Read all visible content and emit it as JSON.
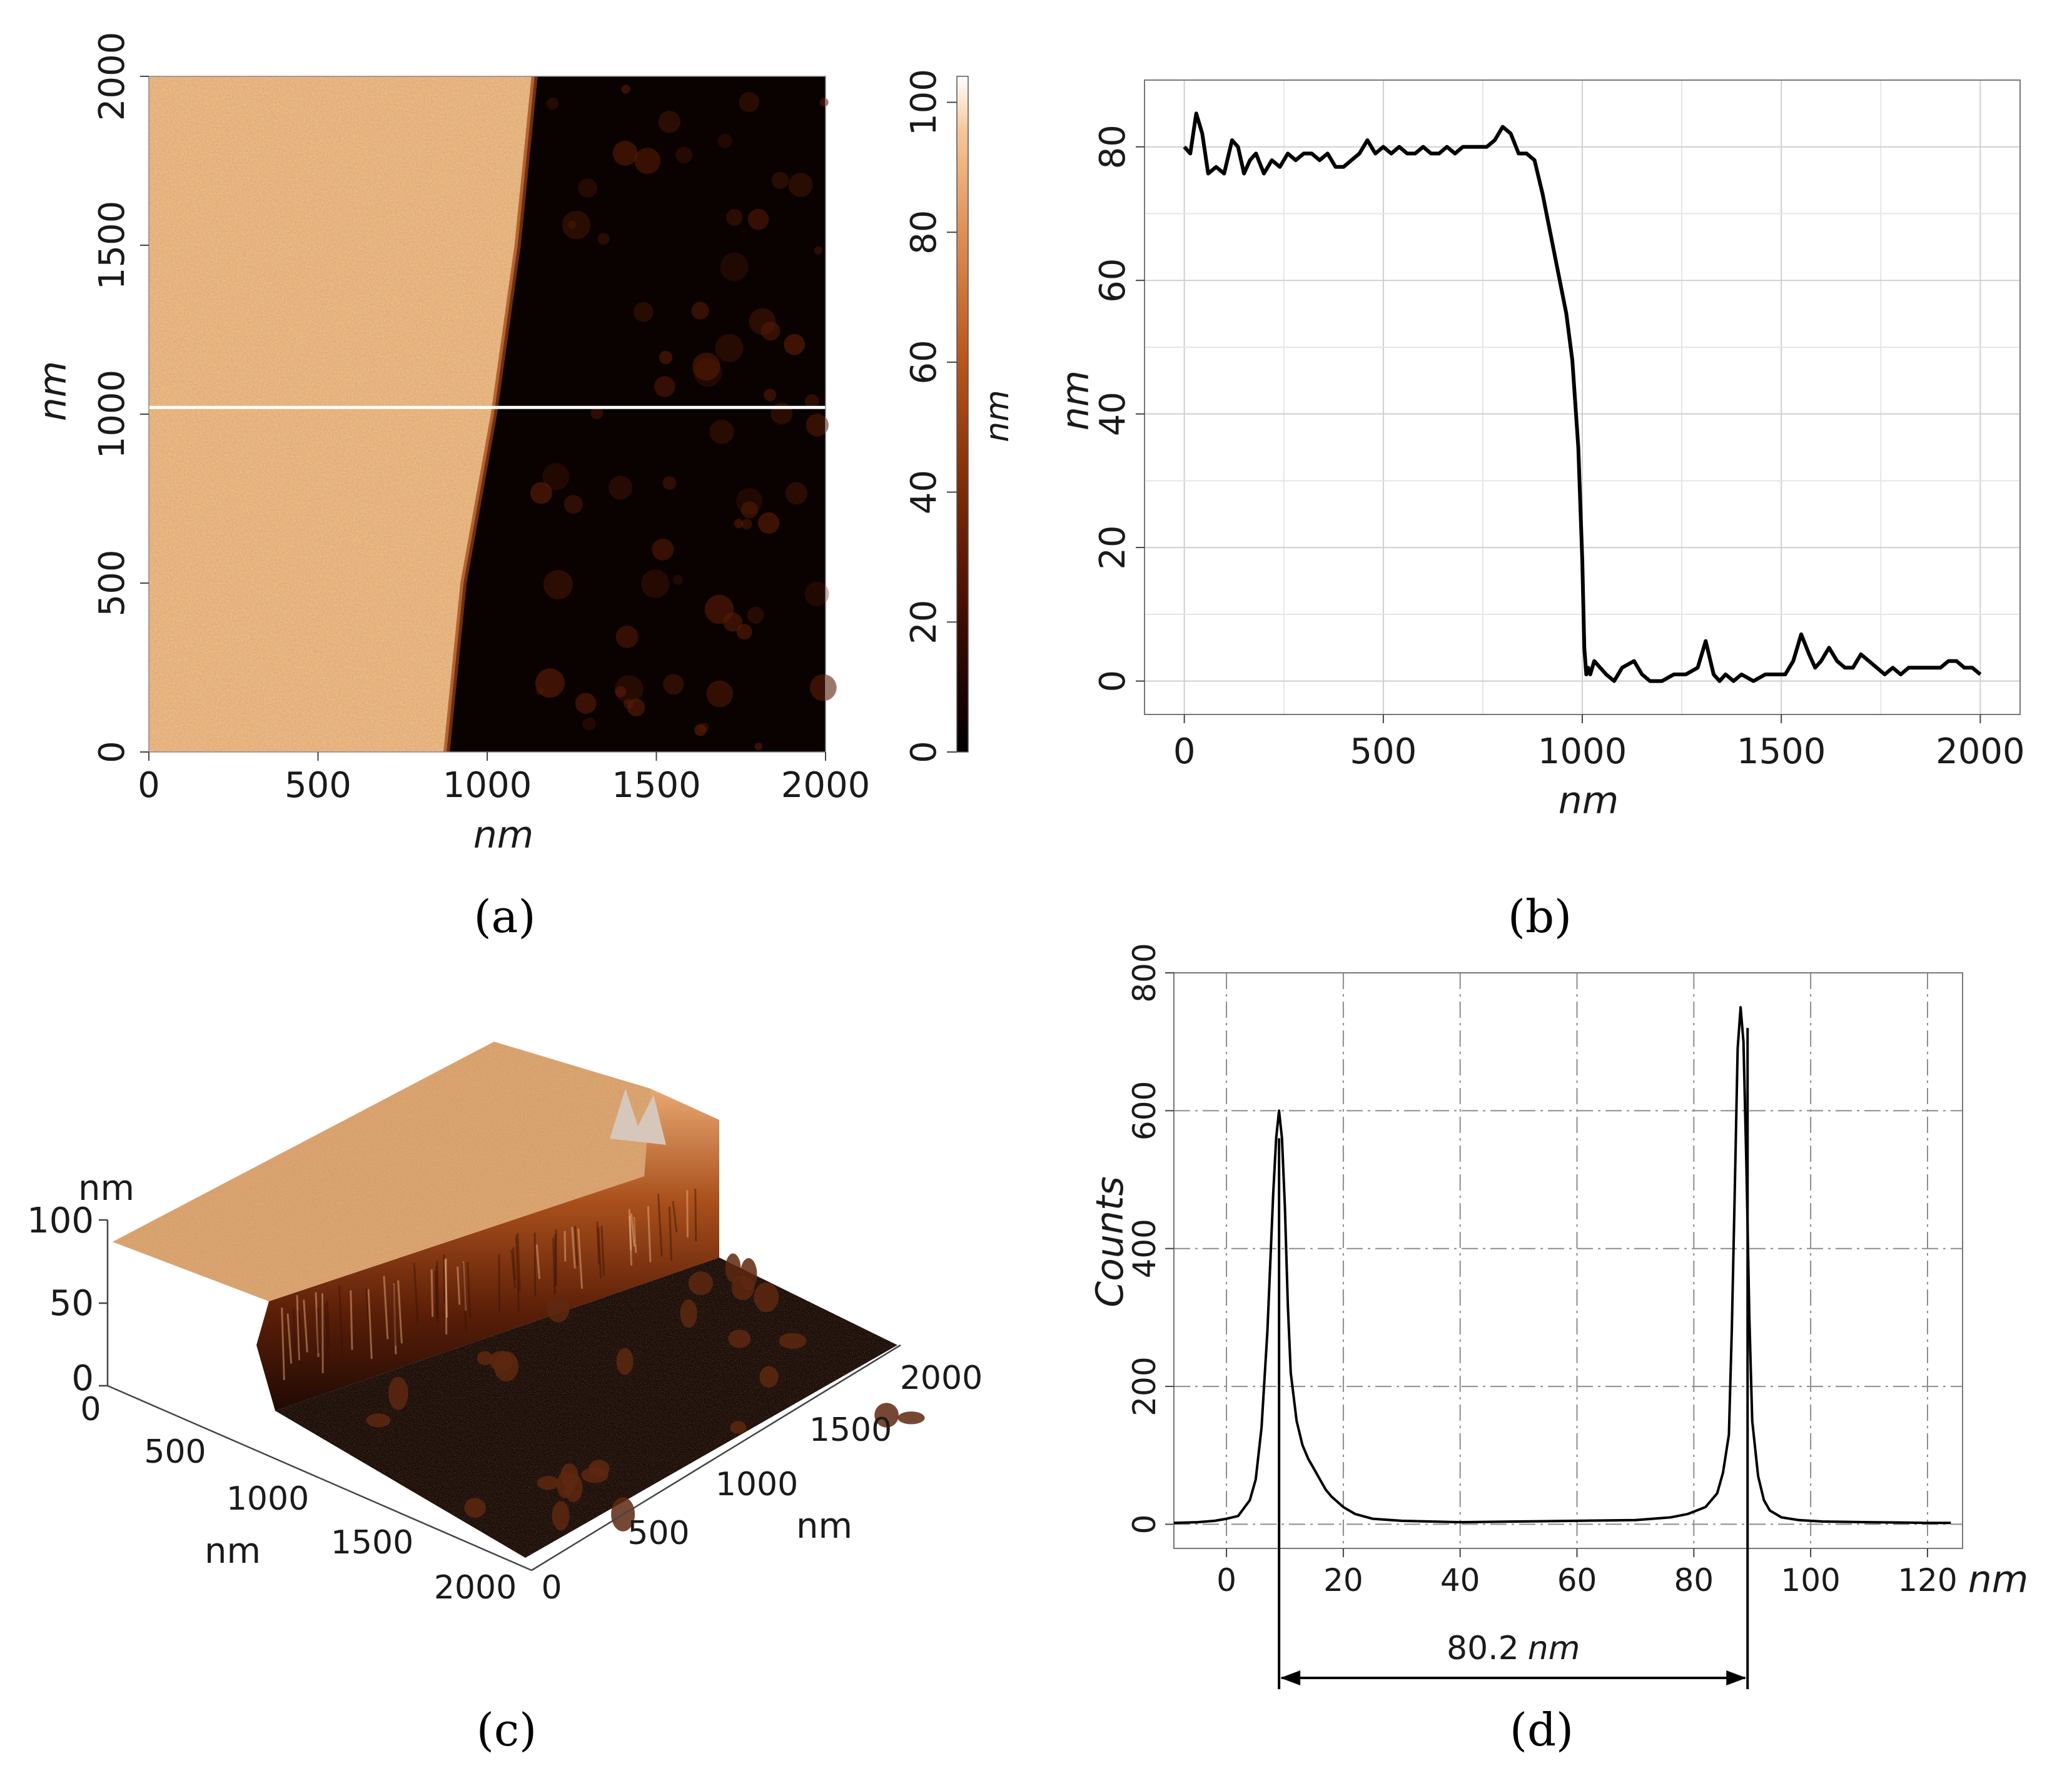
{
  "panel_labels": [
    "(a)",
    "(b)",
    "(c)",
    "(d)"
  ],
  "chart_data": [
    {
      "panel": "a",
      "type": "heatmap",
      "description_free": true,
      "xlabel": "nm",
      "ylabel": "nm",
      "xlim": [
        0,
        2000
      ],
      "ylim": [
        0,
        2000
      ],
      "x_ticks": [
        "0",
        "500",
        "1000",
        "1500",
        "2000"
      ],
      "y_ticks": [
        "0",
        "500",
        "1000",
        "1500",
        "2000"
      ],
      "profile_line_y": 1020,
      "edge_x_at_y": [
        {
          "y": 0,
          "x": 880
        },
        {
          "y": 500,
          "x": 930
        },
        {
          "y": 1000,
          "x": 1020
        },
        {
          "y": 1500,
          "x": 1090
        },
        {
          "y": 2000,
          "x": 1140
        }
      ],
      "colorbar": {
        "label": "nm",
        "range": [
          0,
          104
        ],
        "ticks": [
          "0",
          "20",
          "40",
          "60",
          "80",
          "100"
        ],
        "colors": [
          "#000000",
          "#3a0a02",
          "#7a2a08",
          "#b8561c",
          "#e0935a",
          "#f6c79a",
          "#ffffff"
        ]
      }
    },
    {
      "panel": "b",
      "type": "line",
      "xlabel": "nm",
      "ylabel": "nm",
      "xlim": [
        -100,
        2100
      ],
      "ylim": [
        -5,
        90
      ],
      "x_ticks": [
        "0",
        "500",
        "1000",
        "1500",
        "2000"
      ],
      "y_ticks": [
        "0",
        "20",
        "40",
        "60",
        "80"
      ],
      "x": [
        0,
        15,
        30,
        45,
        60,
        80,
        100,
        120,
        135,
        150,
        165,
        180,
        200,
        220,
        240,
        260,
        280,
        300,
        320,
        340,
        360,
        380,
        400,
        420,
        440,
        460,
        480,
        500,
        520,
        540,
        560,
        580,
        600,
        620,
        640,
        660,
        680,
        700,
        720,
        740,
        760,
        780,
        800,
        820,
        840,
        860,
        880,
        900,
        920,
        940,
        960,
        975,
        990,
        1000,
        1005,
        1010,
        1015,
        1020,
        1030,
        1045,
        1060,
        1080,
        1100,
        1130,
        1150,
        1170,
        1200,
        1230,
        1260,
        1290,
        1310,
        1330,
        1345,
        1360,
        1380,
        1400,
        1430,
        1460,
        1490,
        1510,
        1530,
        1550,
        1570,
        1585,
        1600,
        1620,
        1640,
        1660,
        1680,
        1700,
        1720,
        1740,
        1760,
        1780,
        1800,
        1820,
        1840,
        1860,
        1880,
        1900,
        1920,
        1940,
        1960,
        1980,
        2000
      ],
      "y": [
        80,
        79,
        85,
        82,
        76,
        77,
        76,
        81,
        80,
        76,
        78,
        79,
        76,
        78,
        77,
        79,
        78,
        79,
        79,
        78,
        79,
        77,
        77,
        78,
        79,
        81,
        79,
        80,
        79,
        80,
        79,
        79,
        80,
        79,
        79,
        80,
        79,
        80,
        80,
        80,
        80,
        81,
        83,
        82,
        79,
        79,
        78,
        73,
        67,
        61,
        55,
        48,
        35,
        18,
        5,
        1,
        2,
        1,
        3,
        2,
        1,
        0,
        2,
        3,
        1,
        0,
        0,
        1,
        1,
        2,
        6,
        1,
        0,
        1,
        0,
        1,
        0,
        1,
        1,
        1,
        3,
        7,
        4,
        2,
        3,
        5,
        3,
        2,
        2,
        4,
        3,
        2,
        1,
        2,
        1,
        2,
        2,
        2,
        2,
        2,
        3,
        3,
        2,
        2,
        1
      ]
    },
    {
      "panel": "c",
      "type": "surface3d",
      "z_label": "nm",
      "z_ticks": [
        "0",
        "50",
        "100"
      ],
      "x_label": "nm",
      "x_ticks": [
        "0",
        "500",
        "1000",
        "1500",
        "2000"
      ],
      "y_label": "nm",
      "y_ticks": [
        "0",
        "500",
        "1000",
        "1500",
        "2000"
      ],
      "step_height": 80
    },
    {
      "panel": "d",
      "type": "line",
      "subtype": "histogram",
      "xlabel": "nm",
      "ylabel": "Counts",
      "xlim": [
        -9,
        126
      ],
      "ylim": [
        -35,
        800
      ],
      "x_ticks": [
        "0",
        "20",
        "40",
        "60",
        "80",
        "100",
        "120"
      ],
      "y_ticks": [
        "0",
        "200",
        "400",
        "600",
        "800"
      ],
      "x": [
        -9,
        -5,
        -2,
        0,
        2,
        4,
        5,
        6,
        7,
        8,
        8.5,
        9,
        9.5,
        10,
        10.5,
        11,
        12,
        13,
        14,
        15,
        16,
        17,
        18,
        20,
        22,
        25,
        30,
        35,
        40,
        50,
        60,
        70,
        76,
        79,
        82,
        84,
        85,
        86,
        86.5,
        87,
        87.5,
        88,
        88.5,
        89,
        89.5,
        90,
        91,
        92,
        93,
        95,
        98,
        102,
        110,
        120,
        124
      ],
      "y": [
        2,
        3,
        5,
        8,
        12,
        35,
        65,
        140,
        280,
        480,
        560,
        600,
        560,
        460,
        320,
        220,
        150,
        115,
        95,
        80,
        65,
        50,
        40,
        25,
        15,
        8,
        5,
        4,
        3,
        4,
        5,
        6,
        10,
        15,
        25,
        45,
        75,
        130,
        280,
        480,
        690,
        750,
        700,
        520,
        300,
        150,
        70,
        35,
        20,
        10,
        6,
        4,
        3,
        2,
        2
      ],
      "annotation": {
        "from": 9,
        "to": 89.2,
        "value": "80.2",
        "unit": "nm"
      }
    }
  ]
}
